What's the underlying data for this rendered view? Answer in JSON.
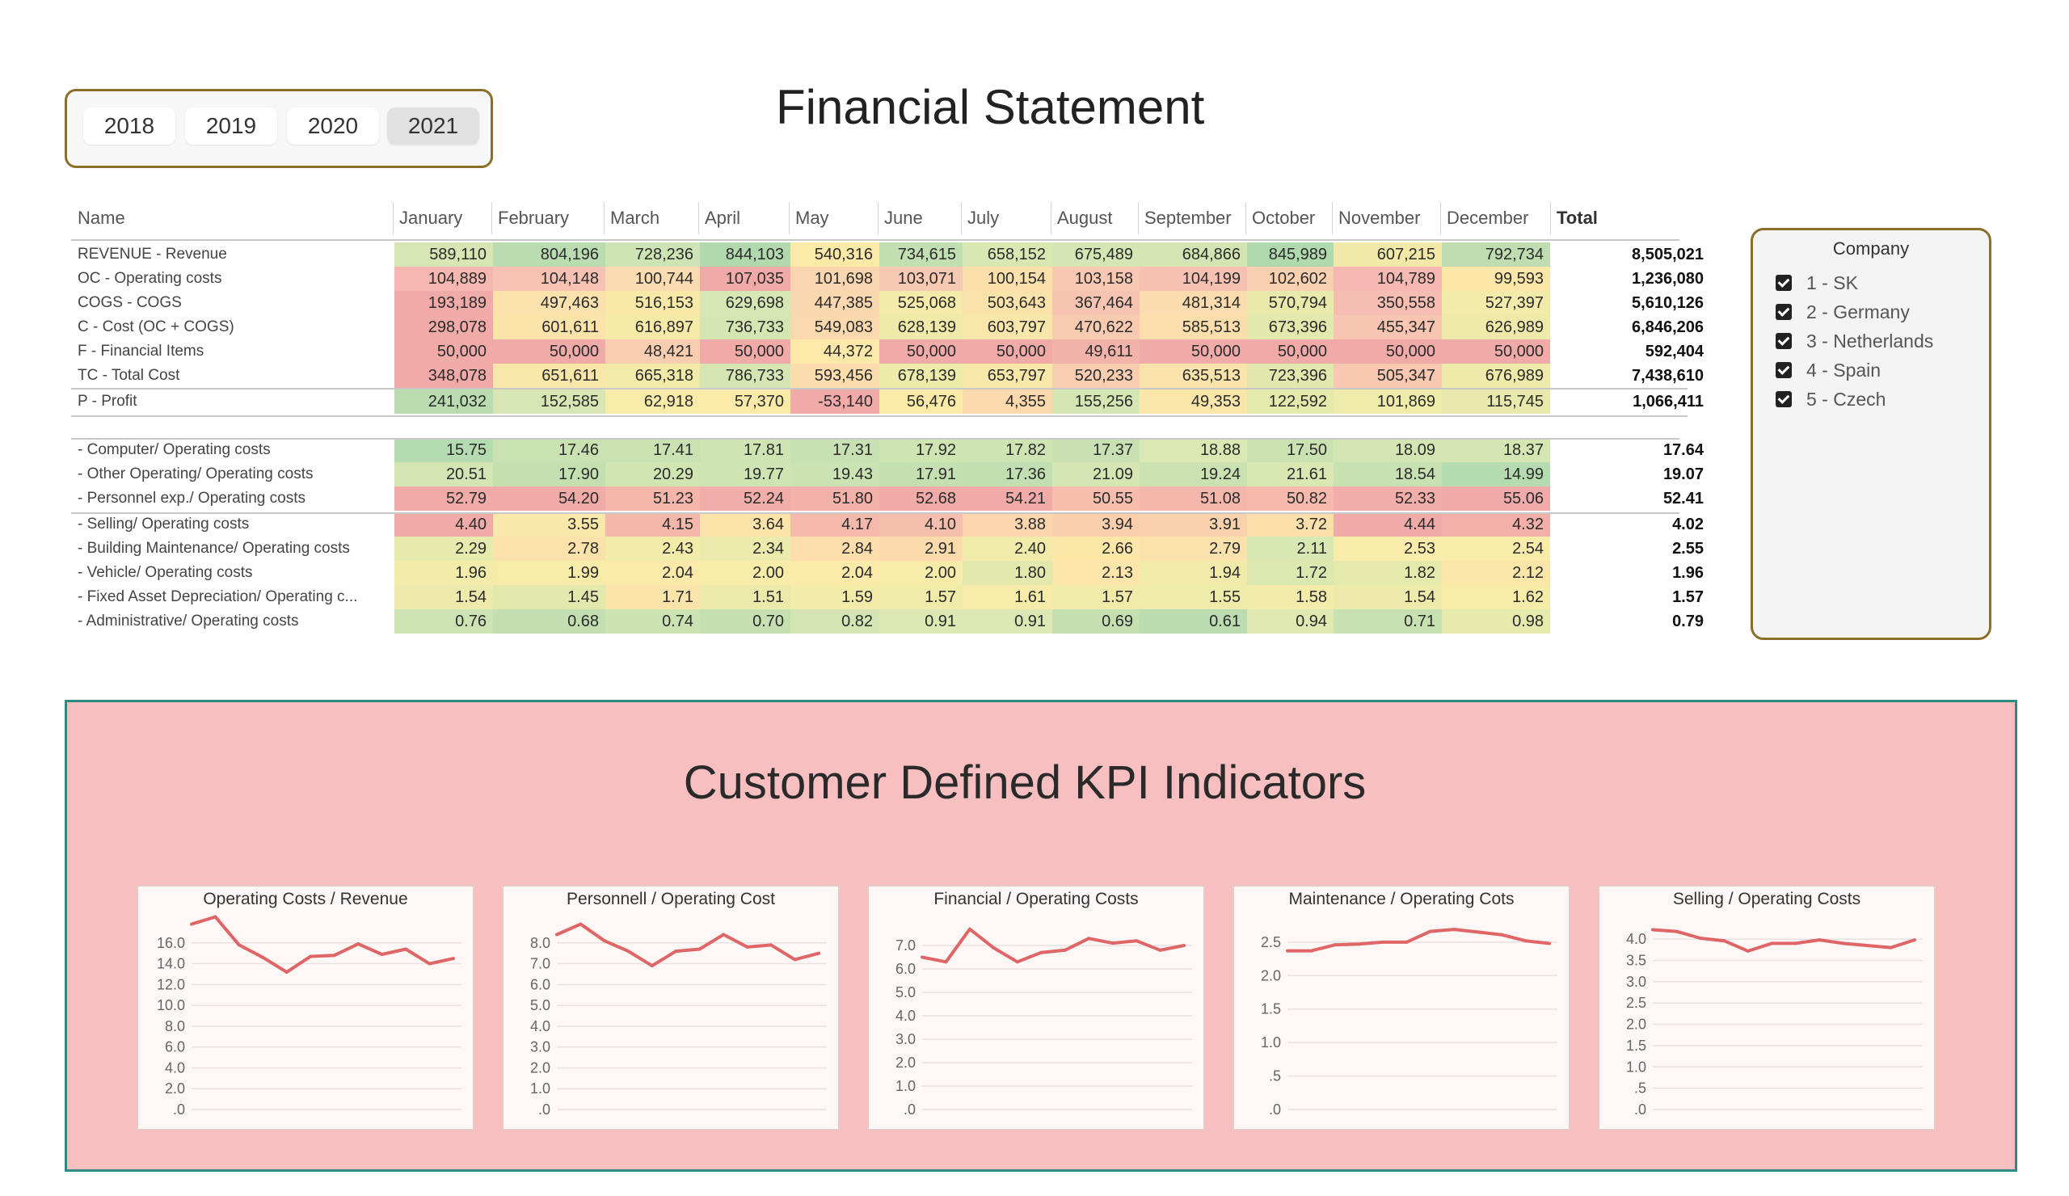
{
  "years": [
    "2018",
    "2019",
    "2020",
    "2021"
  ],
  "selected_year": "2021",
  "title": "Financial Statement",
  "table": {
    "name_header": "Name",
    "months": [
      "January",
      "February",
      "March",
      "April",
      "May",
      "June",
      "July",
      "August",
      "September",
      "October",
      "November",
      "December"
    ],
    "total_header": "Total",
    "rows": [
      {
        "name": "REVENUE - Revenue",
        "values": [
          "589,110",
          "804,196",
          "728,236",
          "844,103",
          "540,316",
          "734,615",
          "658,152",
          "675,489",
          "684,866",
          "845,989",
          "607,215",
          "792,734"
        ],
        "total": "8,505,021",
        "colors": [
          "#d7e6b3",
          "#b9dcb0",
          "#cfe4b4",
          "#b2d9ae",
          "#fbe9a8",
          "#c2dfb2",
          "#d9e8b3",
          "#d4e6b3",
          "#d2e5b3",
          "#b1d9ae",
          "#f2e9a8",
          "#bfddb1"
        ]
      },
      {
        "name": "OC - Operating costs",
        "values": [
          "104,889",
          "104,148",
          "100,744",
          "107,035",
          "101,698",
          "103,071",
          "100,154",
          "103,158",
          "104,199",
          "102,602",
          "104,789",
          "99,593"
        ],
        "total": "1,236,080",
        "colors": [
          "#f5b8b0",
          "#f7c2b3",
          "#fadcb0",
          "#f0aaa8",
          "#f9d6af",
          "#f8c9b2",
          "#fbe0ac",
          "#f8c8b2",
          "#f6c1b3",
          "#f9d0b0",
          "#f5b9b1",
          "#fce6a8"
        ]
      },
      {
        "name": "COGS - COGS",
        "values": [
          "193,189",
          "497,463",
          "516,153",
          "629,698",
          "447,385",
          "525,068",
          "503,643",
          "367,464",
          "481,314",
          "570,794",
          "350,558",
          "527,397"
        ],
        "total": "5,610,126",
        "colors": [
          "#f0aaa8",
          "#fbe2ac",
          "#f8e9a8",
          "#d6e7b3",
          "#f9d8af",
          "#f4ebaa",
          "#fae3aa",
          "#f7c4b2",
          "#fadcae",
          "#e8eaac",
          "#f6beb2",
          "#f3eba9"
        ]
      },
      {
        "name": "C - Cost (OC + COGS)",
        "values": [
          "298,078",
          "601,611",
          "616,897",
          "736,733",
          "549,083",
          "628,139",
          "603,797",
          "470,622",
          "585,513",
          "673,396",
          "455,347",
          "626,989"
        ],
        "total": "6,846,206",
        "colors": [
          "#f0aaa8",
          "#fae4aa",
          "#f6eaa8",
          "#d5e6b3",
          "#fbd9ae",
          "#efeaaa",
          "#f9e6aa",
          "#f8cbb0",
          "#fbdeac",
          "#e2e9ad",
          "#f7c5b1",
          "#f0eaaa"
        ]
      },
      {
        "name": "F - Financial Items",
        "values": [
          "50,000",
          "50,000",
          "48,421",
          "50,000",
          "44,372",
          "50,000",
          "50,000",
          "49,611",
          "50,000",
          "50,000",
          "50,000",
          "50,000"
        ],
        "total": "592,404",
        "colors": [
          "#f0aaa8",
          "#f0aaa8",
          "#f8cdb0",
          "#f0aaa8",
          "#fce8a8",
          "#f0aaa8",
          "#f0aaa8",
          "#f2b3ab",
          "#f0aaa8",
          "#f0aaa8",
          "#f0aaa8",
          "#f0aaa8"
        ]
      },
      {
        "name": "TC - Total Cost",
        "values": [
          "348,078",
          "651,611",
          "665,318",
          "786,733",
          "593,456",
          "678,139",
          "653,797",
          "520,233",
          "635,513",
          "723,396",
          "505,347",
          "676,989"
        ],
        "total": "7,438,610",
        "colors": [
          "#f0aaa8",
          "#f8e7a9",
          "#f2eaa9",
          "#d6e6b3",
          "#fbdcac",
          "#ecebaa",
          "#f7e8a9",
          "#f8cdb0",
          "#fae2ab",
          "#e2e8ad",
          "#f8c8b1",
          "#eeeaaa"
        ]
      },
      {
        "name": "P - Profit",
        "values": [
          "241,032",
          "152,585",
          "62,918",
          "57,370",
          "-53,140",
          "56,476",
          "4,355",
          "155,256",
          "49,353",
          "122,592",
          "101,869",
          "115,745"
        ],
        "total": "1,066,411",
        "colors": [
          "#b9dcb0",
          "#d7e6b3",
          "#f8eba9",
          "#faeaa8",
          "#f0aaa8",
          "#faeaa8",
          "#fcd9ac",
          "#d6e6b3",
          "#fbe6a9",
          "#e4eaac",
          "#eeebab",
          "#e7eaac"
        ]
      },
      {
        "name": "- Computer/ Operating costs",
        "values": [
          "15.75",
          "17.46",
          "17.41",
          "17.81",
          "17.31",
          "17.92",
          "17.82",
          "17.37",
          "18.88",
          "17.50",
          "18.09",
          "18.37"
        ],
        "total": "17.64",
        "colors": [
          "#b5dbb0",
          "#c9e2b2",
          "#cae2b2",
          "#cee4b3",
          "#c8e1b2",
          "#cfe4b3",
          "#cee4b3",
          "#c9e1b2",
          "#dbe8b3",
          "#cae2b2",
          "#d2e5b3",
          "#d6e6b3"
        ]
      },
      {
        "name": "- Other Operating/ Operating costs",
        "values": [
          "20.51",
          "17.90",
          "20.29",
          "19.77",
          "19.43",
          "17.91",
          "17.36",
          "21.09",
          "19.24",
          "21.61",
          "18.54",
          "14.99"
        ],
        "total": "19.07",
        "colors": [
          "#d2e5b3",
          "#c4e0b1",
          "#d1e5b3",
          "#cee4b3",
          "#cbe3b2",
          "#c4e0b1",
          "#c1dfb1",
          "#d6e6b3",
          "#cae2b2",
          "#d9e7b3",
          "#c7e1b2",
          "#b5dbb0"
        ]
      },
      {
        "name": "- Personnel exp./ Operating costs",
        "values": [
          "52.79",
          "54.20",
          "51.23",
          "52.24",
          "51.80",
          "52.68",
          "54.21",
          "50.55",
          "51.08",
          "50.82",
          "52.33",
          "55.06"
        ],
        "total": "52.41",
        "colors": [
          "#f0aaa8",
          "#f0aaa8",
          "#f4b6ab",
          "#f1aea9",
          "#f2b2aa",
          "#f0aba8",
          "#f0aaa8",
          "#f6bdac",
          "#f5b7ab",
          "#f5baac",
          "#f1ada9",
          "#f0aaa8"
        ]
      },
      {
        "name": "- Selling/ Operating costs",
        "values": [
          "4.40",
          "3.55",
          "4.15",
          "3.64",
          "4.17",
          "4.10",
          "3.88",
          "3.94",
          "3.91",
          "3.72",
          "4.44",
          "4.32"
        ],
        "total": "4.02",
        "colors": [
          "#f0aaa8",
          "#fae7aa",
          "#f4b8ab",
          "#fbe3aa",
          "#f5b9ab",
          "#f6beac",
          "#fad5ad",
          "#f9cfad",
          "#f9d2ad",
          "#fbe0ab",
          "#f0aaa8",
          "#f2b0a9"
        ]
      },
      {
        "name": "- Building Maintenance/ Operating costs",
        "values": [
          "2.29",
          "2.78",
          "2.43",
          "2.34",
          "2.84",
          "2.91",
          "2.40",
          "2.66",
          "2.79",
          "2.11",
          "2.53",
          "2.54"
        ],
        "total": "2.55",
        "colors": [
          "#e6eaad",
          "#fbe2ab",
          "#f3ebaa",
          "#ebebac",
          "#fbdeac",
          "#fbdaac",
          "#f0ebab",
          "#fbe8a9",
          "#fbe1ab",
          "#d9e7b3",
          "#f9eba9",
          "#f9eba9"
        ]
      },
      {
        "name": "- Vehicle/ Operating costs",
        "values": [
          "1.96",
          "1.99",
          "2.04",
          "2.00",
          "2.04",
          "2.00",
          "1.80",
          "2.13",
          "1.94",
          "1.72",
          "1.82",
          "2.12"
        ],
        "total": "1.96",
        "colors": [
          "#f3eba9",
          "#f6eba9",
          "#fae9a9",
          "#f7eba9",
          "#fae9a9",
          "#f7eba9",
          "#e3e9ad",
          "#fbe5aa",
          "#f2eaaa",
          "#dce8b0",
          "#e5eaac",
          "#fbe6aa"
        ]
      },
      {
        "name": "- Fixed Asset Depreciation/ Operating c...",
        "values": [
          "1.54",
          "1.45",
          "1.71",
          "1.51",
          "1.59",
          "1.57",
          "1.61",
          "1.57",
          "1.55",
          "1.58",
          "1.54",
          "1.62"
        ],
        "total": "1.57",
        "colors": [
          "#eeeaab",
          "#e3e9ad",
          "#fbe4aa",
          "#ebeaab",
          "#f3ebaa",
          "#f1ebaa",
          "#f6eba9",
          "#f1ebaa",
          "#efebaa",
          "#f2ebaa",
          "#eeeaab",
          "#f7eba9"
        ]
      },
      {
        "name": "- Administrative/ Operating costs",
        "values": [
          "0.76",
          "0.68",
          "0.74",
          "0.70",
          "0.82",
          "0.91",
          "0.91",
          "0.69",
          "0.61",
          "0.94",
          "0.71",
          "0.98"
        ],
        "total": "0.79",
        "colors": [
          "#cde3b3",
          "#c3dfb1",
          "#cbe2b2",
          "#c6e0b2",
          "#d3e5b3",
          "#dde8b2",
          "#dde8b2",
          "#c4e0b1",
          "#bbdcb0",
          "#e0e9b1",
          "#c7e1b2",
          "#e6eaad"
        ]
      }
    ]
  },
  "company_slicer": {
    "title": "Company",
    "items": [
      "1 - SK",
      "2 - Germany",
      "3 - Netherlands",
      "4 - Spain",
      "5 - Czech"
    ]
  },
  "kpi": {
    "title": "Customer Defined KPI Indicators",
    "line_color": "#e06566"
  },
  "chart_data": [
    {
      "type": "line",
      "title": "Operating Costs / Revenue",
      "yticks": [
        "16.0",
        "14.0",
        "12.0",
        "10.0",
        "8.0",
        "6.0",
        "4.0",
        "2.0",
        ".0"
      ],
      "ylim": [
        0,
        18
      ],
      "values": [
        17.8,
        18.5,
        15.8,
        14.6,
        13.2,
        14.7,
        14.8,
        15.9,
        14.9,
        15.4,
        14.0,
        14.5
      ]
    },
    {
      "type": "line",
      "title": "Personnell  / Operating Cost",
      "yticks": [
        "8.0",
        "7.0",
        "6.0",
        "5.0",
        "4.0",
        "3.0",
        "2.0",
        "1.0",
        ".0"
      ],
      "ylim": [
        0,
        9
      ],
      "values": [
        8.4,
        8.9,
        8.1,
        7.6,
        6.9,
        7.6,
        7.7,
        8.4,
        7.8,
        7.9,
        7.2,
        7.5
      ]
    },
    {
      "type": "line",
      "title": "Financial / Operating Costs",
      "yticks": [
        "7.0",
        "6.0",
        "5.0",
        "4.0",
        "3.0",
        "2.0",
        "1.0",
        ".0"
      ],
      "ylim": [
        0,
        8
      ],
      "values": [
        6.5,
        6.3,
        7.7,
        6.9,
        6.3,
        6.7,
        6.8,
        7.3,
        7.1,
        7.2,
        6.8,
        7.0
      ]
    },
    {
      "type": "line",
      "title": "Maintenance / Operating Cots",
      "yticks": [
        "2.5",
        "2.0",
        "1.5",
        "1.0",
        ".5",
        ".0"
      ],
      "ylim": [
        0,
        2.8
      ],
      "values": [
        2.37,
        2.37,
        2.46,
        2.47,
        2.5,
        2.5,
        2.66,
        2.69,
        2.65,
        2.61,
        2.52,
        2.48
      ]
    },
    {
      "type": "line",
      "title": "Selling / Operating Costs",
      "yticks": [
        "4.0",
        "3.5",
        "3.0",
        "2.5",
        "2.0",
        "1.5",
        "1.0",
        ".5",
        ".0"
      ],
      "ylim": [
        0,
        4.4
      ],
      "values": [
        4.22,
        4.18,
        4.02,
        3.96,
        3.72,
        3.9,
        3.9,
        3.98,
        3.9,
        3.85,
        3.8,
        3.98
      ]
    }
  ]
}
